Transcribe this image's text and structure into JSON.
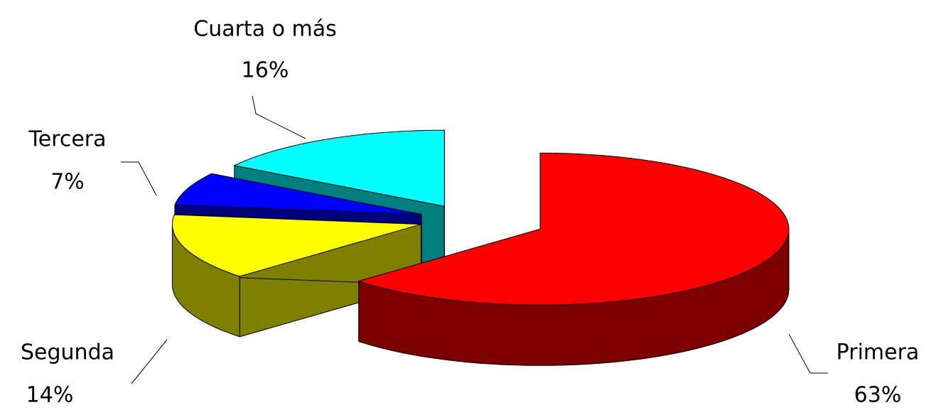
{
  "chart_data": {
    "type": "pie3d",
    "categories": [
      "Primera",
      "Segunda",
      "Tercera",
      "Cuarta o más"
    ],
    "values": [
      63,
      14,
      7,
      16
    ],
    "value_labels": [
      "63%",
      "14%",
      "7%",
      "16%"
    ],
    "colors": [
      "#ff0000",
      "#ffff00",
      "#0000ff",
      "#00ffff"
    ]
  }
}
